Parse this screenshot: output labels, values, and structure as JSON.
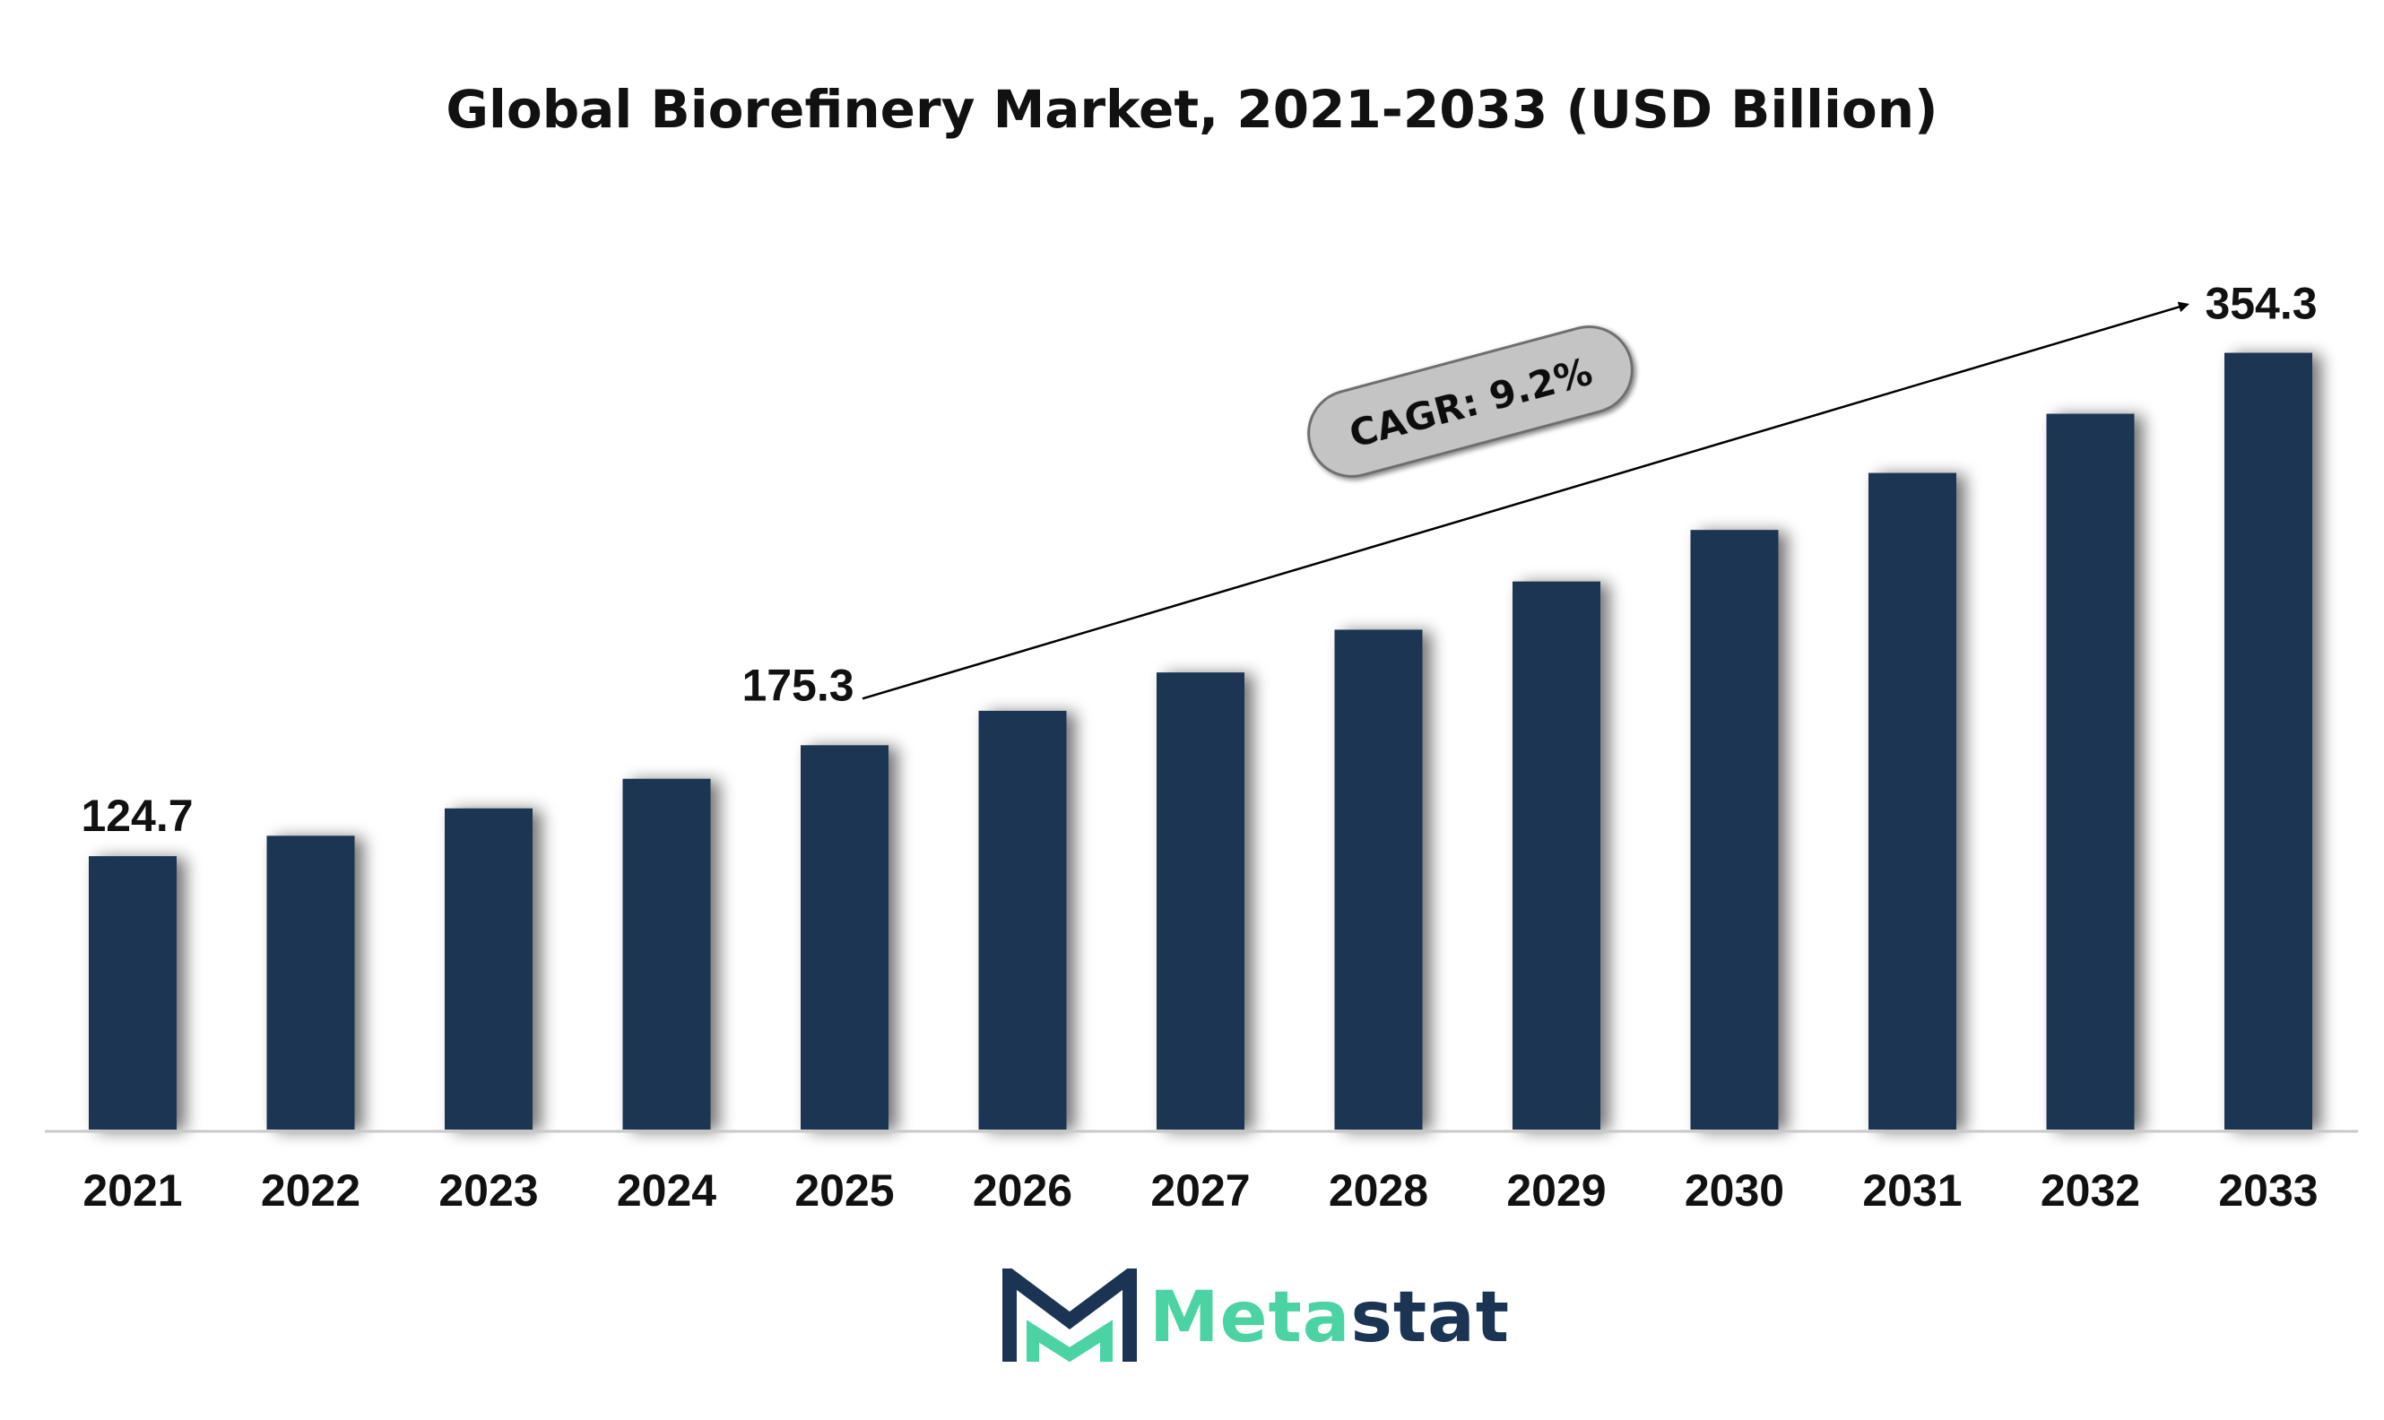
{
  "chart_data": {
    "type": "bar",
    "title": "Global Biorefinery Market, 2021-2033 (USD Billion)",
    "categories": [
      "2021",
      "2022",
      "2023",
      "2024",
      "2025",
      "2026",
      "2027",
      "2028",
      "2029",
      "2030",
      "2031",
      "2032",
      "2033"
    ],
    "values": [
      124.7,
      134.0,
      146.5,
      160.0,
      175.3,
      191.0,
      208.5,
      228.0,
      250.0,
      273.5,
      299.5,
      326.5,
      354.3
    ],
    "data_labels": [
      {
        "category": "2021",
        "text": "124.7"
      },
      {
        "category": "2025",
        "text": "175.3"
      },
      {
        "category": "2033",
        "text": "354.3"
      }
    ],
    "annotation": {
      "text": "CAGR: 9.2%",
      "from": "2025",
      "to": "2033"
    },
    "ylim": [
      0,
      360
    ],
    "grid": false,
    "bar_color": "#1b3453"
  },
  "logo": {
    "part1": "Meta",
    "part2": "stat",
    "color1": "#4cd3a3",
    "color2": "#1b3453"
  }
}
